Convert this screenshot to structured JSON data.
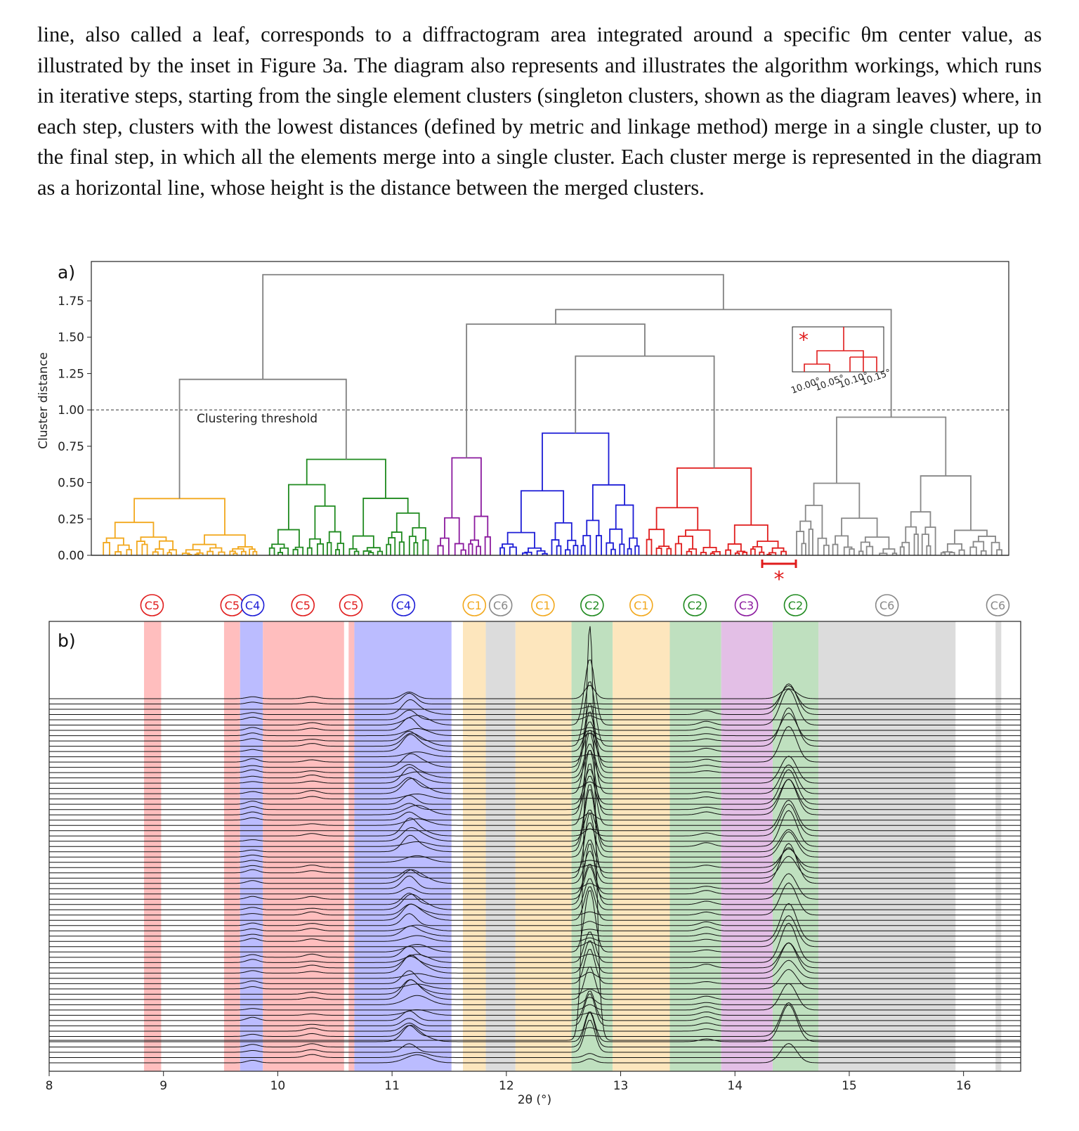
{
  "paragraph": {
    "text": "line, also called a leaf, corresponds to a diffractogram area integrated around a specific θm center value, as illustrated by the inset in Figure 3a. The diagram also represents and illustrates the algorithm workings, which runs in iterative steps, starting from the single element clusters (singleton clusters, shown as the diagram leaves) where, in each step, clusters with the lowest distances (defined by metric and linkage method) merge in a single cluster, up to the final step, in which all the elements merge into a single cluster. Each cluster merge is represented in the diagram as a horizontal line, whose height is the distance between the merged clusters."
  },
  "chart_data": [
    {
      "panel_label": "a)",
      "type": "dendrogram",
      "ylabel": "Cluster distance",
      "ylim": [
        0,
        2.0
      ],
      "yticks": [
        "0.00",
        "0.25",
        "0.50",
        "0.75",
        "1.00",
        "1.25",
        "1.50",
        "1.75"
      ],
      "threshold": {
        "value": 1.0,
        "label": "Clustering threshold"
      },
      "colors": {
        "C1": "#f2a81d",
        "C2": "#1f8a1f",
        "C3": "#8b1a9e",
        "C4": "#1c1cd6",
        "C5": "#e01c1c",
        "C6": "#888888",
        "above_threshold": "#808080"
      },
      "cluster_order": [
        "C1",
        "C2",
        "C3",
        "C4",
        "C5",
        "C6"
      ],
      "cluster_merge_heights": {
        "C1": 0.39,
        "C2": 0.66,
        "C3": 0.67,
        "C4": 0.84,
        "C5": 0.6,
        "C6": 0.95
      },
      "top_merges": [
        1.21,
        1.59,
        1.37,
        1.69,
        1.93
      ],
      "inset": {
        "marker": "*",
        "tick_labels": [
          "10.00°",
          "10.05°",
          "10.10°",
          "10.15°"
        ]
      },
      "marker_below": "*"
    },
    {
      "panel_label": "b)",
      "type": "stacked-line",
      "xlabel": "2θ (°)",
      "xlim": [
        8,
        16.5
      ],
      "xticks": [
        "8",
        "9",
        "10",
        "11",
        "12",
        "13",
        "14",
        "15",
        "16"
      ],
      "bands": [
        {
          "from": 8.83,
          "to": 8.98,
          "cluster": "C5"
        },
        {
          "from": 9.53,
          "to": 9.67,
          "cluster": "C5"
        },
        {
          "from": 9.67,
          "to": 9.87,
          "cluster": "C4"
        },
        {
          "from": 9.87,
          "to": 10.58,
          "cluster": "C5"
        },
        {
          "from": 10.62,
          "to": 10.67,
          "cluster": "C5"
        },
        {
          "from": 10.67,
          "to": 11.52,
          "cluster": "C4"
        },
        {
          "from": 11.62,
          "to": 11.82,
          "cluster": "C1"
        },
        {
          "from": 11.82,
          "to": 12.08,
          "cluster": "C6"
        },
        {
          "from": 12.08,
          "to": 12.57,
          "cluster": "C1"
        },
        {
          "from": 12.57,
          "to": 12.93,
          "cluster": "C2"
        },
        {
          "from": 12.93,
          "to": 13.43,
          "cluster": "C1"
        },
        {
          "from": 13.43,
          "to": 13.88,
          "cluster": "C2"
        },
        {
          "from": 13.88,
          "to": 14.33,
          "cluster": "C3"
        },
        {
          "from": 14.33,
          "to": 14.73,
          "cluster": "C2"
        },
        {
          "from": 14.73,
          "to": 15.93,
          "cluster": "C6"
        },
        {
          "from": 16.28,
          "to": 16.33,
          "cluster": "C6"
        }
      ],
      "band_colors": {
        "C1": "#fde6bd",
        "C2": "#bfe0bf",
        "C3": "#e3bfe6",
        "C4": "#bbbcff",
        "C5": "#ffbebe",
        "C6": "#dcdcdc"
      },
      "cluster_labels": [
        {
          "label": "C5",
          "x": 8.9
        },
        {
          "label": "C5",
          "x": 9.6
        },
        {
          "label": "C4",
          "x": 9.78
        },
        {
          "label": "C5",
          "x": 10.22
        },
        {
          "label": "C5",
          "x": 10.64
        },
        {
          "label": "C4",
          "x": 11.1
        },
        {
          "label": "C1",
          "x": 11.72
        },
        {
          "label": "C6",
          "x": 11.95
        },
        {
          "label": "C1",
          "x": 12.32
        },
        {
          "label": "C2",
          "x": 12.75
        },
        {
          "label": "C1",
          "x": 13.18
        },
        {
          "label": "C2",
          "x": 13.65
        },
        {
          "label": "C3",
          "x": 14.1
        },
        {
          "label": "C2",
          "x": 14.53
        },
        {
          "label": "C6",
          "x": 15.33
        },
        {
          "label": "C6",
          "x": 16.3
        }
      ],
      "peaks": [
        {
          "center": 12.73,
          "width": 0.045,
          "max_height": 1.0
        },
        {
          "center": 14.47,
          "width": 0.07,
          "max_height": 0.6
        },
        {
          "center": 11.15,
          "width": 0.06,
          "max_height": 0.2
        },
        {
          "center": 11.22,
          "width": 0.1,
          "max_height": 0.15
        },
        {
          "center": 9.78,
          "width": 0.05,
          "max_height": 0.05
        },
        {
          "center": 10.3,
          "width": 0.06,
          "max_height": 0.05
        },
        {
          "center": 13.75,
          "width": 0.06,
          "max_height": 0.06
        }
      ],
      "n_curves": 70
    }
  ]
}
